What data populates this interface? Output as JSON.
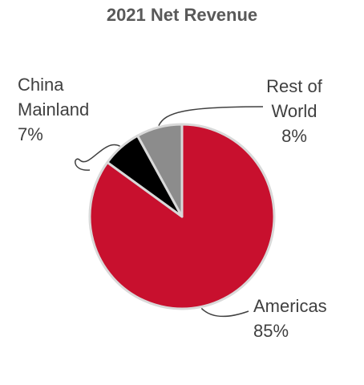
{
  "chart_data": {
    "type": "pie",
    "title": "2021 Net Revenue",
    "slices": [
      {
        "label": "Americas",
        "name_lines": [
          "Americas"
        ],
        "value": 85,
        "value_label": "85%",
        "color": "#C8102E"
      },
      {
        "label": "China Mainland",
        "name_lines": [
          "China",
          "Mainland"
        ],
        "value": 7,
        "value_label": "7%",
        "color": "#000000"
      },
      {
        "label": "Rest of World",
        "name_lines": [
          "Rest of",
          "World"
        ],
        "value": 8,
        "value_label": "8%",
        "color": "#8C8C8C"
      }
    ],
    "start_angle_deg": 0,
    "direction": "clockwise",
    "slice_border_color": "#D9D9D9",
    "legend": "none",
    "label_color": "#404040",
    "title_color": "#595959"
  }
}
